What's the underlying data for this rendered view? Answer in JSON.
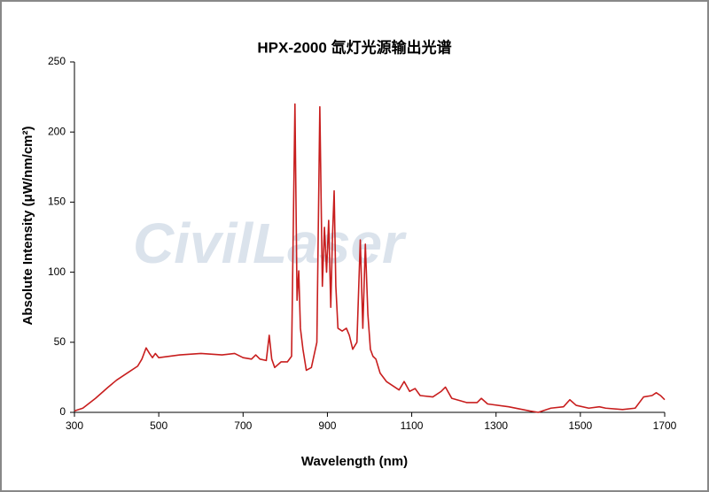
{
  "chart_data": {
    "type": "line",
    "title": "HPX-2000 氙灯光源输出光谱",
    "x_label": "Wavelength (nm)",
    "y_label": "Absolute Intensity  (μW/nm/cm²)",
    "watermark": "CivilLaser",
    "xlim": [
      300,
      1700
    ],
    "xticks": [
      300,
      500,
      700,
      900,
      1100,
      1300,
      1500,
      1700
    ],
    "ylim": [
      0,
      250
    ],
    "yticks": [
      0,
      50,
      100,
      150,
      200,
      250
    ],
    "grid": false,
    "series": [
      {
        "color": "#c81e1e",
        "x": [
          300,
          320,
          350,
          380,
          400,
          430,
          450,
          460,
          470,
          478,
          485,
          492,
          500,
          550,
          600,
          650,
          680,
          700,
          720,
          730,
          740,
          755,
          762,
          768,
          775,
          790,
          805,
          815,
          823,
          828,
          832,
          836,
          842,
          850,
          862,
          875,
          882,
          888,
          893,
          898,
          903,
          908,
          912,
          916,
          920,
          925,
          935,
          945,
          952,
          960,
          970,
          978,
          984,
          990,
          996,
          1002,
          1008,
          1015,
          1025,
          1040,
          1055,
          1070,
          1082,
          1095,
          1108,
          1120,
          1150,
          1170,
          1180,
          1195,
          1230,
          1255,
          1265,
          1280,
          1330,
          1380,
          1400,
          1430,
          1460,
          1475,
          1490,
          1520,
          1545,
          1560,
          1600,
          1630,
          1650,
          1670,
          1680,
          1690,
          1700
        ],
        "values": [
          1,
          3,
          10,
          18,
          23,
          29,
          33,
          38,
          46,
          42,
          39,
          42,
          39,
          41,
          42,
          41,
          42,
          39,
          38,
          41,
          38,
          37,
          55,
          38,
          32,
          36,
          36,
          40,
          220,
          80,
          101,
          60,
          45,
          30,
          32,
          50,
          218,
          90,
          132,
          100,
          137,
          75,
          125,
          158,
          90,
          60,
          58,
          60,
          55,
          45,
          50,
          123,
          60,
          120,
          70,
          45,
          40,
          38,
          28,
          22,
          19,
          16,
          22,
          15,
          17,
          12,
          11,
          15,
          18,
          10,
          7,
          7,
          10,
          6,
          4,
          1,
          0,
          3,
          4,
          9,
          5,
          3,
          4,
          3,
          2,
          3,
          11,
          12,
          14,
          12,
          9
        ]
      }
    ]
  }
}
